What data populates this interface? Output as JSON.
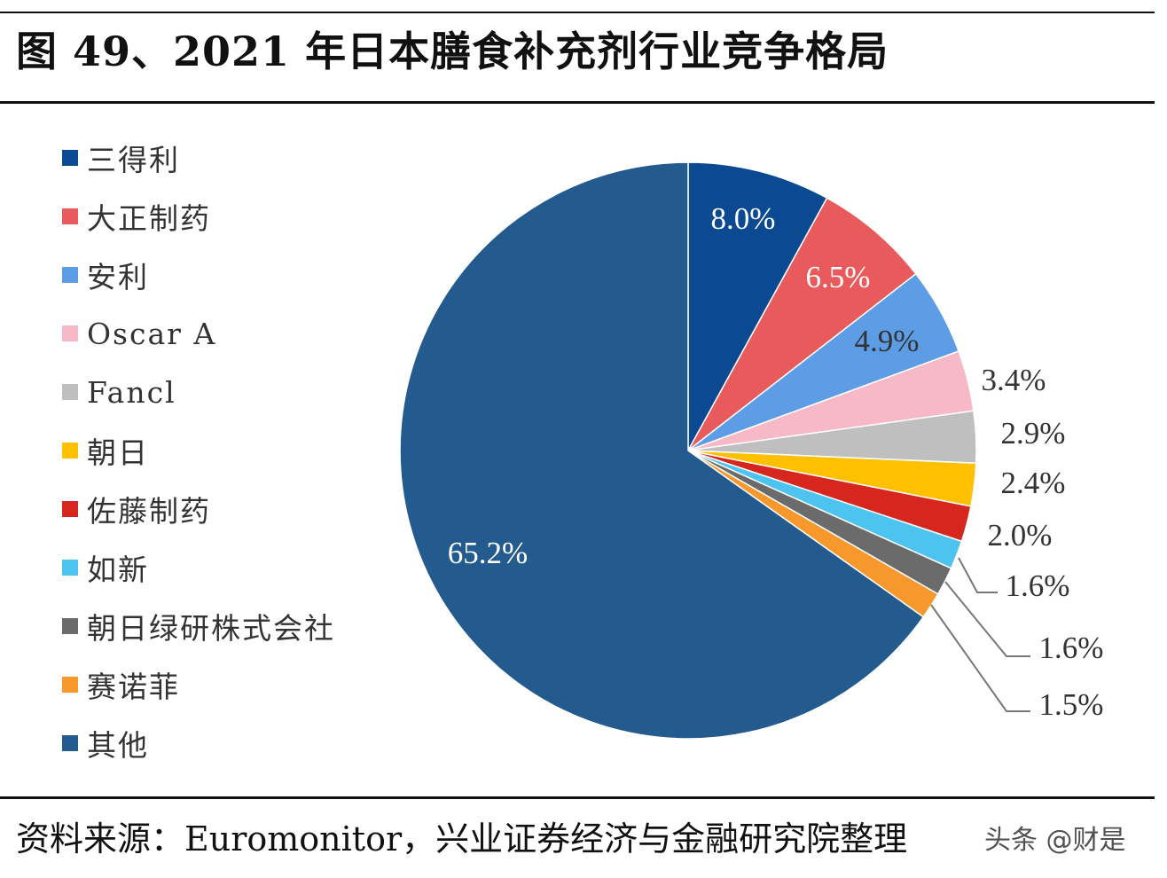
{
  "title": "图 49、2021 年日本膳食补充剂行业竞争格局",
  "chart_data": {
    "type": "pie",
    "title": "",
    "start": "12 o'clock, clockwise",
    "legend_position": "left",
    "slices": [
      {
        "label": "三得利",
        "value": 8.0,
        "display": "8.0%",
        "color": "#0b4a93"
      },
      {
        "label": "大正制药",
        "value": 6.5,
        "display": "6.5%",
        "color": "#e85a5c"
      },
      {
        "label": "安利",
        "value": 4.9,
        "display": "4.9%",
        "color": "#5c9de6"
      },
      {
        "label": "Oscar A",
        "value": 3.4,
        "display": "3.4%",
        "color": "#f7b9c7"
      },
      {
        "label": "Fancl",
        "value": 2.9,
        "display": "2.9%",
        "color": "#bfbfbf"
      },
      {
        "label": "朝日",
        "value": 2.4,
        "display": "2.4%",
        "color": "#ffc000"
      },
      {
        "label": "佐藤制药",
        "value": 2.0,
        "display": "2.0%",
        "color": "#d7261e"
      },
      {
        "label": "如新",
        "value": 1.6,
        "display": "1.6%",
        "color": "#4dc3f0"
      },
      {
        "label": "朝日绿研株式会社",
        "value": 1.6,
        "display": "1.6%",
        "color": "#6b6b6b"
      },
      {
        "label": "赛诺菲",
        "value": 1.5,
        "display": "1.5%",
        "color": "#f7982c"
      },
      {
        "label": "其他",
        "value": 65.2,
        "display": "65.2%",
        "color": "#245b8f"
      }
    ]
  },
  "source": "资料来源：Euromonitor，兴业证券经济与金融研究院整理",
  "watermark": "头条 @财是"
}
